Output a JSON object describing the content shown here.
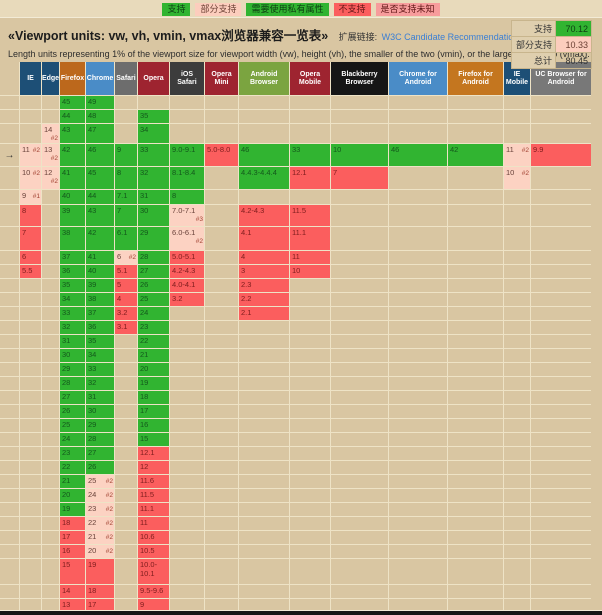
{
  "legend": {
    "items": [
      {
        "label": "支持",
        "type": "support"
      },
      {
        "label": "部分支持",
        "type": "partial"
      },
      {
        "label": "需要使用私有属性",
        "type": "prefix"
      },
      {
        "label": "不支持",
        "type": "none"
      },
      {
        "label": "是否支持未知",
        "type": "unknown"
      }
    ]
  },
  "header": {
    "title": "«Viewport units: vw, vh, vmin, vmax浏览器兼容一览表»",
    "link_label": "扩展链接:",
    "link_text": "W3C Candidate Recommendation",
    "description": "Length units representing 1% of the viewport size for viewport width (vw), height (vh), the smaller of the two (vmin), or the larger of the two (vmax)."
  },
  "stats": {
    "support": {
      "label": "支持",
      "value": "70.12"
    },
    "partial": {
      "label": "部分支持",
      "value": "10.33"
    },
    "total": {
      "label": "总计",
      "value": "80.45"
    }
  },
  "colors": {
    "support": "#31b431",
    "partial": "#fcd2c2",
    "no_support": "#fb5e5e",
    "unknown": "#f79c9c",
    "page_background": "#d9c6a2"
  },
  "table": {
    "current_marker": "→",
    "current_row": 3,
    "browsers": [
      {
        "label": "IE",
        "color": "#1d4f76"
      },
      {
        "label": "Edge",
        "color": "#1d4f76"
      },
      {
        "label": "Firefox",
        "color": "#bc681c"
      },
      {
        "label": "Chrome",
        "color": "#4a8cc7"
      },
      {
        "label": "Safari",
        "color": "#6d6d6d"
      },
      {
        "label": "Opera",
        "color": "#9e2430"
      },
      {
        "label": "iOS Safari",
        "color": "#3c3c3c"
      },
      {
        "label": "Opera Mini",
        "color": "#9e2430"
      },
      {
        "label": "Android Browser",
        "color": "#7ba440"
      },
      {
        "label": "Opera Mobile",
        "color": "#9e2430"
      },
      {
        "label": "Blackberry Browser",
        "color": "#161616"
      },
      {
        "label": "Chrome for Android",
        "color": "#4a8cc7"
      },
      {
        "label": "Firefox for Android",
        "color": "#c4761f"
      },
      {
        "label": "IE Mobile",
        "color": "#1d4f76"
      },
      {
        "label": "UC Browser for Android",
        "color": "#787878"
      }
    ],
    "status_codes": {
      "y": "支持",
      "n": "不支持",
      "p": "部分支持/注"
    },
    "rows": [
      [
        null,
        null,
        {
          "v": "45",
          "s": "y"
        },
        {
          "v": "49",
          "s": "y"
        },
        null,
        null,
        null,
        null,
        null,
        null,
        null,
        null,
        null,
        null,
        null
      ],
      [
        null,
        null,
        {
          "v": "44",
          "s": "y"
        },
        {
          "v": "48",
          "s": "y"
        },
        null,
        {
          "v": "35",
          "s": "y"
        },
        null,
        null,
        null,
        null,
        null,
        null,
        null,
        null,
        null
      ],
      [
        null,
        {
          "v": "14",
          "s": "p",
          "n": "#2"
        },
        {
          "v": "43",
          "s": "y"
        },
        {
          "v": "47",
          "s": "y"
        },
        null,
        {
          "v": "34",
          "s": "y"
        },
        null,
        null,
        null,
        null,
        null,
        null,
        null,
        null,
        null
      ],
      [
        {
          "v": "11",
          "s": "p",
          "n": "#2"
        },
        {
          "v": "13",
          "s": "p",
          "n": "#2"
        },
        {
          "v": "42",
          "s": "y"
        },
        {
          "v": "46",
          "s": "y"
        },
        {
          "v": "9",
          "s": "y"
        },
        {
          "v": "33",
          "s": "y"
        },
        {
          "v": "9.0-9.1",
          "s": "y"
        },
        {
          "v": "5.0-8.0",
          "s": "n"
        },
        {
          "v": "46",
          "s": "y"
        },
        {
          "v": "33",
          "s": "y"
        },
        {
          "v": "10",
          "s": "y"
        },
        {
          "v": "46",
          "s": "y"
        },
        {
          "v": "42",
          "s": "y"
        },
        {
          "v": "11",
          "s": "p",
          "n": "#2"
        },
        {
          "v": "9.9",
          "s": "n"
        }
      ],
      [
        {
          "v": "10",
          "s": "p",
          "n": "#2"
        },
        {
          "v": "12",
          "s": "p",
          "n": "#2"
        },
        {
          "v": "41",
          "s": "y"
        },
        {
          "v": "45",
          "s": "y"
        },
        {
          "v": "8",
          "s": "y"
        },
        {
          "v": "32",
          "s": "y"
        },
        {
          "v": "8.1-8.4",
          "s": "y"
        },
        null,
        {
          "v": "4.4.3-4.4.4",
          "s": "y"
        },
        {
          "v": "12.1",
          "s": "n"
        },
        {
          "v": "7",
          "s": "n"
        },
        null,
        null,
        {
          "v": "10",
          "s": "p",
          "n": "#2"
        },
        null
      ],
      [
        {
          "v": "9",
          "s": "p",
          "n": "#1"
        },
        null,
        {
          "v": "40",
          "s": "y"
        },
        {
          "v": "44",
          "s": "y"
        },
        {
          "v": "7.1",
          "s": "y"
        },
        {
          "v": "31",
          "s": "y"
        },
        {
          "v": "8",
          "s": "y"
        },
        null,
        null,
        null,
        null,
        null,
        null,
        null,
        null
      ],
      [
        {
          "v": "8",
          "s": "n"
        },
        null,
        {
          "v": "39",
          "s": "y"
        },
        {
          "v": "43",
          "s": "y"
        },
        {
          "v": "7",
          "s": "y"
        },
        {
          "v": "30",
          "s": "y"
        },
        {
          "v": "7.0-7.1",
          "s": "p",
          "n": "#3"
        },
        null,
        {
          "v": "4.2-4.3",
          "s": "n"
        },
        {
          "v": "11.5",
          "s": "n"
        },
        null,
        null,
        null,
        null,
        null
      ],
      [
        {
          "v": "7",
          "s": "n"
        },
        null,
        {
          "v": "38",
          "s": "y"
        },
        {
          "v": "42",
          "s": "y"
        },
        {
          "v": "6.1",
          "s": "y"
        },
        {
          "v": "29",
          "s": "y"
        },
        {
          "v": "6.0-6.1",
          "s": "p",
          "n": "#2"
        },
        null,
        {
          "v": "4.1",
          "s": "n"
        },
        {
          "v": "11.1",
          "s": "n"
        },
        null,
        null,
        null,
        null,
        null
      ],
      [
        {
          "v": "6",
          "s": "n"
        },
        null,
        {
          "v": "37",
          "s": "y"
        },
        {
          "v": "41",
          "s": "y"
        },
        {
          "v": "6",
          "s": "p",
          "n": "#2"
        },
        {
          "v": "28",
          "s": "y"
        },
        {
          "v": "5.0-5.1",
          "s": "n"
        },
        null,
        {
          "v": "4",
          "s": "n"
        },
        {
          "v": "11",
          "s": "n"
        },
        null,
        null,
        null,
        null,
        null
      ],
      [
        {
          "v": "5.5",
          "s": "n"
        },
        null,
        {
          "v": "36",
          "s": "y"
        },
        {
          "v": "40",
          "s": "y"
        },
        {
          "v": "5.1",
          "s": "n"
        },
        {
          "v": "27",
          "s": "y"
        },
        {
          "v": "4.2-4.3",
          "s": "n"
        },
        null,
        {
          "v": "3",
          "s": "n"
        },
        {
          "v": "10",
          "s": "n"
        },
        null,
        null,
        null,
        null,
        null
      ],
      [
        null,
        null,
        {
          "v": "35",
          "s": "y"
        },
        {
          "v": "39",
          "s": "y"
        },
        {
          "v": "5",
          "s": "n"
        },
        {
          "v": "26",
          "s": "y"
        },
        {
          "v": "4.0-4.1",
          "s": "n"
        },
        null,
        {
          "v": "2.3",
          "s": "n"
        },
        null,
        null,
        null,
        null,
        null,
        null
      ],
      [
        null,
        null,
        {
          "v": "34",
          "s": "y"
        },
        {
          "v": "38",
          "s": "y"
        },
        {
          "v": "4",
          "s": "n"
        },
        {
          "v": "25",
          "s": "y"
        },
        {
          "v": "3.2",
          "s": "n"
        },
        null,
        {
          "v": "2.2",
          "s": "n"
        },
        null,
        null,
        null,
        null,
        null,
        null
      ],
      [
        null,
        null,
        {
          "v": "33",
          "s": "y"
        },
        {
          "v": "37",
          "s": "y"
        },
        {
          "v": "3.2",
          "s": "n"
        },
        {
          "v": "24",
          "s": "y"
        },
        null,
        null,
        {
          "v": "2.1",
          "s": "n"
        },
        null,
        null,
        null,
        null,
        null,
        null
      ],
      [
        null,
        null,
        {
          "v": "32",
          "s": "y"
        },
        {
          "v": "36",
          "s": "y"
        },
        {
          "v": "3.1",
          "s": "n"
        },
        {
          "v": "23",
          "s": "y"
        },
        null,
        null,
        null,
        null,
        null,
        null,
        null,
        null,
        null
      ],
      [
        null,
        null,
        {
          "v": "31",
          "s": "y"
        },
        {
          "v": "35",
          "s": "y"
        },
        null,
        {
          "v": "22",
          "s": "y"
        },
        null,
        null,
        null,
        null,
        null,
        null,
        null,
        null,
        null
      ],
      [
        null,
        null,
        {
          "v": "30",
          "s": "y"
        },
        {
          "v": "34",
          "s": "y"
        },
        null,
        {
          "v": "21",
          "s": "y"
        },
        null,
        null,
        null,
        null,
        null,
        null,
        null,
        null,
        null
      ],
      [
        null,
        null,
        {
          "v": "29",
          "s": "y"
        },
        {
          "v": "33",
          "s": "y"
        },
        null,
        {
          "v": "20",
          "s": "y"
        },
        null,
        null,
        null,
        null,
        null,
        null,
        null,
        null,
        null
      ],
      [
        null,
        null,
        {
          "v": "28",
          "s": "y"
        },
        {
          "v": "32",
          "s": "y"
        },
        null,
        {
          "v": "19",
          "s": "y"
        },
        null,
        null,
        null,
        null,
        null,
        null,
        null,
        null,
        null
      ],
      [
        null,
        null,
        {
          "v": "27",
          "s": "y"
        },
        {
          "v": "31",
          "s": "y"
        },
        null,
        {
          "v": "18",
          "s": "y"
        },
        null,
        null,
        null,
        null,
        null,
        null,
        null,
        null,
        null
      ],
      [
        null,
        null,
        {
          "v": "26",
          "s": "y"
        },
        {
          "v": "30",
          "s": "y"
        },
        null,
        {
          "v": "17",
          "s": "y"
        },
        null,
        null,
        null,
        null,
        null,
        null,
        null,
        null,
        null
      ],
      [
        null,
        null,
        {
          "v": "25",
          "s": "y"
        },
        {
          "v": "29",
          "s": "y"
        },
        null,
        {
          "v": "16",
          "s": "y"
        },
        null,
        null,
        null,
        null,
        null,
        null,
        null,
        null,
        null
      ],
      [
        null,
        null,
        {
          "v": "24",
          "s": "y"
        },
        {
          "v": "28",
          "s": "y"
        },
        null,
        {
          "v": "15",
          "s": "y"
        },
        null,
        null,
        null,
        null,
        null,
        null,
        null,
        null,
        null
      ],
      [
        null,
        null,
        {
          "v": "23",
          "s": "y"
        },
        {
          "v": "27",
          "s": "y"
        },
        null,
        {
          "v": "12.1",
          "s": "n"
        },
        null,
        null,
        null,
        null,
        null,
        null,
        null,
        null,
        null
      ],
      [
        null,
        null,
        {
          "v": "22",
          "s": "y"
        },
        {
          "v": "26",
          "s": "y"
        },
        null,
        {
          "v": "12",
          "s": "n"
        },
        null,
        null,
        null,
        null,
        null,
        null,
        null,
        null,
        null
      ],
      [
        null,
        null,
        {
          "v": "21",
          "s": "y"
        },
        {
          "v": "25",
          "s": "p",
          "n": "#2"
        },
        null,
        {
          "v": "11.6",
          "s": "n"
        },
        null,
        null,
        null,
        null,
        null,
        null,
        null,
        null,
        null
      ],
      [
        null,
        null,
        {
          "v": "20",
          "s": "y"
        },
        {
          "v": "24",
          "s": "p",
          "n": "#2"
        },
        null,
        {
          "v": "11.5",
          "s": "n"
        },
        null,
        null,
        null,
        null,
        null,
        null,
        null,
        null,
        null
      ],
      [
        null,
        null,
        {
          "v": "19",
          "s": "y"
        },
        {
          "v": "23",
          "s": "p",
          "n": "#2"
        },
        null,
        {
          "v": "11.1",
          "s": "n"
        },
        null,
        null,
        null,
        null,
        null,
        null,
        null,
        null,
        null
      ],
      [
        null,
        null,
        {
          "v": "18",
          "s": "n"
        },
        {
          "v": "22",
          "s": "p",
          "n": "#2"
        },
        null,
        {
          "v": "11",
          "s": "n"
        },
        null,
        null,
        null,
        null,
        null,
        null,
        null,
        null,
        null
      ],
      [
        null,
        null,
        {
          "v": "17",
          "s": "n"
        },
        {
          "v": "21",
          "s": "p",
          "n": "#2"
        },
        null,
        {
          "v": "10.6",
          "s": "n"
        },
        null,
        null,
        null,
        null,
        null,
        null,
        null,
        null,
        null
      ],
      [
        null,
        null,
        {
          "v": "16",
          "s": "n"
        },
        {
          "v": "20",
          "s": "p",
          "n": "#2"
        },
        null,
        {
          "v": "10.5",
          "s": "n"
        },
        null,
        null,
        null,
        null,
        null,
        null,
        null,
        null,
        null
      ],
      [
        null,
        null,
        {
          "v": "15",
          "s": "n"
        },
        {
          "v": "19",
          "s": "n"
        },
        null,
        {
          "v": "10.0-10.1",
          "s": "n"
        },
        null,
        null,
        null,
        null,
        null,
        null,
        null,
        null,
        null
      ],
      [
        null,
        null,
        {
          "v": "14",
          "s": "n"
        },
        {
          "v": "18",
          "s": "n"
        },
        null,
        {
          "v": "9.5-9.6",
          "s": "n"
        },
        null,
        null,
        null,
        null,
        null,
        null,
        null,
        null,
        null
      ],
      [
        null,
        null,
        {
          "v": "13",
          "s": "n"
        },
        {
          "v": "17",
          "s": "n"
        },
        null,
        {
          "v": "9",
          "s": "n"
        },
        null,
        null,
        null,
        null,
        null,
        null,
        null,
        null,
        null
      ]
    ]
  }
}
